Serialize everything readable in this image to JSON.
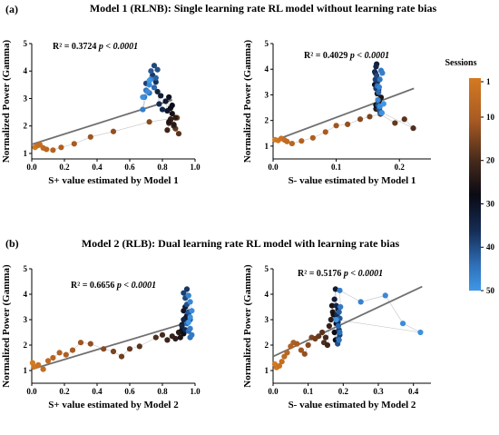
{
  "figure": {
    "panel_a": {
      "label": "(a)",
      "title": "Model 1 (RLNB):  Single learning rate RL model without learning rate bias"
    },
    "panel_b": {
      "label": "(b)",
      "title": "Model 2 (RLB):  Dual learning rate RL model with learning rate bias"
    },
    "colorbar": {
      "title": "Sessions",
      "ticks": [
        "1",
        "10",
        "20",
        "30",
        "40",
        "50"
      ],
      "colors": [
        "#d47a22",
        "#a85a22",
        "#4a2c1c",
        "#0a0a14",
        "#152d55",
        "#2f6fb8",
        "#3f97e6"
      ]
    }
  },
  "chart_data": [
    {
      "type": "scatter",
      "xlabel": "S+ value estimated by Model 1",
      "ylabel": "Normalized Power (Gamma)",
      "xlim": [
        0,
        1.0
      ],
      "ylim": [
        0.8,
        5
      ],
      "xticks": [
        "0.0",
        "0.2",
        "0.4",
        "0.6",
        "0.8",
        "1.0"
      ],
      "yticks": [
        "1",
        "2",
        "3",
        "4",
        "5"
      ],
      "r2_label": "R² = 0.3724",
      "p_label": "p < 0.0001",
      "regression": [
        [
          0.0,
          1.33
        ],
        [
          0.86,
          2.95
        ]
      ],
      "x": [
        0.02,
        0.03,
        0.05,
        0.04,
        0.07,
        0.09,
        0.13,
        0.18,
        0.26,
        0.36,
        0.5,
        0.72,
        0.89,
        0.85,
        0.88,
        0.9,
        0.84,
        0.87,
        0.83,
        0.85,
        0.88,
        0.87,
        0.84,
        0.86,
        0.85,
        0.86,
        0.84,
        0.83,
        0.82,
        0.79,
        0.77,
        0.8,
        0.78,
        0.76,
        0.74,
        0.7,
        0.75,
        0.77,
        0.73,
        0.76,
        0.75,
        0.72,
        0.7,
        0.69,
        0.68,
        0.73,
        0.72,
        0.71,
        0.68,
        0.72
      ],
      "y": [
        1.22,
        1.27,
        1.32,
        1.3,
        1.2,
        1.15,
        1.12,
        1.22,
        1.35,
        1.6,
        1.8,
        2.15,
        2.3,
        2.2,
        1.9,
        1.72,
        2.1,
        2.0,
        1.85,
        2.25,
        2.3,
        2.05,
        2.15,
        2.45,
        2.65,
        2.75,
        3.05,
        2.55,
        2.9,
        3.1,
        3.25,
        2.6,
        2.8,
        3.6,
        3.85,
        3.55,
        4.2,
        4.05,
        4.0,
        3.75,
        3.4,
        3.2,
        3.3,
        3.05,
        2.6,
        3.7,
        3.5,
        3.25,
        3.05,
        3.65
      ]
    },
    {
      "type": "scatter",
      "xlabel": "S- value estimated by Model 1",
      "ylabel": "Normalized Power (Gamma)",
      "xlim": [
        0,
        0.25
      ],
      "ylim": [
        0.5,
        5
      ],
      "xticks": [
        "0.0",
        "0.1",
        "0.2"
      ],
      "yticks": [
        "1",
        "2",
        "3",
        "4",
        "5"
      ],
      "r2_label": "R² = 0.4029",
      "p_label": "p < 0.0001",
      "regression": [
        [
          0.0,
          1.2
        ],
        [
          0.223,
          3.25
        ]
      ],
      "x": [
        0.003,
        0.008,
        0.013,
        0.018,
        0.022,
        0.03,
        0.045,
        0.063,
        0.083,
        0.1,
        0.118,
        0.138,
        0.153,
        0.17,
        0.193,
        0.208,
        0.222,
        0.169,
        0.166,
        0.172,
        0.163,
        0.168,
        0.171,
        0.165,
        0.167,
        0.163,
        0.161,
        0.164,
        0.166,
        0.162,
        0.164,
        0.163,
        0.161,
        0.165,
        0.163,
        0.162,
        0.164,
        0.166,
        0.168,
        0.17,
        0.167,
        0.165,
        0.169,
        0.171,
        0.173,
        0.168,
        0.166,
        0.169,
        0.172,
        0.175
      ],
      "y": [
        1.25,
        1.22,
        1.3,
        1.24,
        1.18,
        1.1,
        1.2,
        1.32,
        1.55,
        1.8,
        1.85,
        2.05,
        2.15,
        2.25,
        1.9,
        2.05,
        1.7,
        2.35,
        2.65,
        2.3,
        2.45,
        2.75,
        2.9,
        3.05,
        3.2,
        2.6,
        3.4,
        3.55,
        3.3,
        3.85,
        4.2,
        4.1,
        3.9,
        3.5,
        3.25,
        3.6,
        3.75,
        2.6,
        2.45,
        2.3,
        3.1,
        3.35,
        3.6,
        3.95,
        3.85,
        3.3,
        2.8,
        2.55,
        2.3,
        2.65
      ]
    },
    {
      "type": "scatter",
      "xlabel": "S+ value estimated by Model 2",
      "ylabel": "Normalized Power (Gamma)",
      "xlim": [
        0,
        1.0
      ],
      "ylim": [
        0.5,
        5
      ],
      "xticks": [
        "0.0",
        "0.2",
        "0.4",
        "0.6",
        "0.8",
        "1.0"
      ],
      "yticks": [
        "1",
        "2",
        "3",
        "4",
        "5"
      ],
      "r2_label": "R² = 0.6656",
      "p_label": "p < 0.0001",
      "regression": [
        [
          0.0,
          1.05
        ],
        [
          0.96,
          2.9
        ]
      ],
      "x": [
        0.005,
        0.015,
        0.04,
        0.07,
        0.1,
        0.13,
        0.17,
        0.21,
        0.25,
        0.3,
        0.36,
        0.44,
        0.5,
        0.55,
        0.6,
        0.66,
        0.76,
        0.8,
        0.83,
        0.86,
        0.88,
        0.9,
        0.91,
        0.92,
        0.93,
        0.92,
        0.94,
        0.93,
        0.95,
        0.94,
        0.93,
        0.92,
        0.94,
        0.96,
        0.95,
        0.93,
        0.94,
        0.95,
        0.96,
        0.97,
        0.95,
        0.96,
        0.97,
        0.98,
        0.97,
        0.96,
        0.97,
        0.98,
        0.97,
        0.96
      ],
      "y": [
        1.3,
        1.15,
        1.22,
        1.05,
        1.38,
        1.5,
        1.7,
        1.62,
        1.8,
        2.1,
        2.05,
        1.85,
        1.75,
        1.55,
        1.85,
        1.95,
        2.3,
        2.4,
        2.2,
        2.35,
        2.25,
        2.5,
        2.3,
        2.6,
        2.45,
        2.8,
        3.05,
        3.35,
        3.15,
        3.5,
        3.0,
        2.75,
        2.6,
        3.25,
        4.2,
        4.05,
        3.85,
        3.6,
        3.3,
        3.0,
        2.85,
        2.55,
        2.3,
        2.4,
        2.65,
        3.95,
        3.7,
        3.35,
        3.1,
        2.9
      ]
    },
    {
      "type": "scatter",
      "xlabel": "S- value estimated by Model 2",
      "ylabel": "Normalized Power (Gamma)",
      "xlim": [
        0,
        0.45
      ],
      "ylim": [
        0.5,
        5
      ],
      "xticks": [
        "0.0",
        "0.1",
        "0.2",
        "0.3",
        "0.4"
      ],
      "yticks": [
        "1",
        "2",
        "3",
        "4",
        "5"
      ],
      "r2_label": "R² = 0.5176",
      "p_label": "p < 0.0001",
      "regression": [
        [
          0.0,
          1.55
        ],
        [
          0.425,
          4.3
        ]
      ],
      "x": [
        0.005,
        0.01,
        0.018,
        0.025,
        0.032,
        0.04,
        0.05,
        0.058,
        0.068,
        0.08,
        0.09,
        0.1,
        0.11,
        0.12,
        0.13,
        0.14,
        0.145,
        0.15,
        0.155,
        0.16,
        0.165,
        0.17,
        0.168,
        0.172,
        0.175,
        0.178,
        0.18,
        0.182,
        0.178,
        0.175,
        0.185,
        0.18,
        0.182,
        0.185,
        0.188,
        0.19,
        0.186,
        0.184,
        0.19,
        0.188,
        0.186,
        0.19,
        0.188,
        0.192,
        0.19,
        0.25,
        0.32,
        0.37,
        0.42,
        0.18
      ],
      "y": [
        1.25,
        1.12,
        1.18,
        1.35,
        1.55,
        1.7,
        1.95,
        2.1,
        2.05,
        1.8,
        1.65,
        2.0,
        2.3,
        2.25,
        2.35,
        2.5,
        2.1,
        2.3,
        2.0,
        2.75,
        3.0,
        3.3,
        3.55,
        3.2,
        2.5,
        2.2,
        2.85,
        3.1,
        4.2,
        3.8,
        3.4,
        3.55,
        3.2,
        2.9,
        2.6,
        2.4,
        2.25,
        2.05,
        3.05,
        3.3,
        2.75,
        2.5,
        2.2,
        3.5,
        4.15,
        3.7,
        3.95,
        2.85,
        2.5,
        3.0
      ]
    }
  ]
}
